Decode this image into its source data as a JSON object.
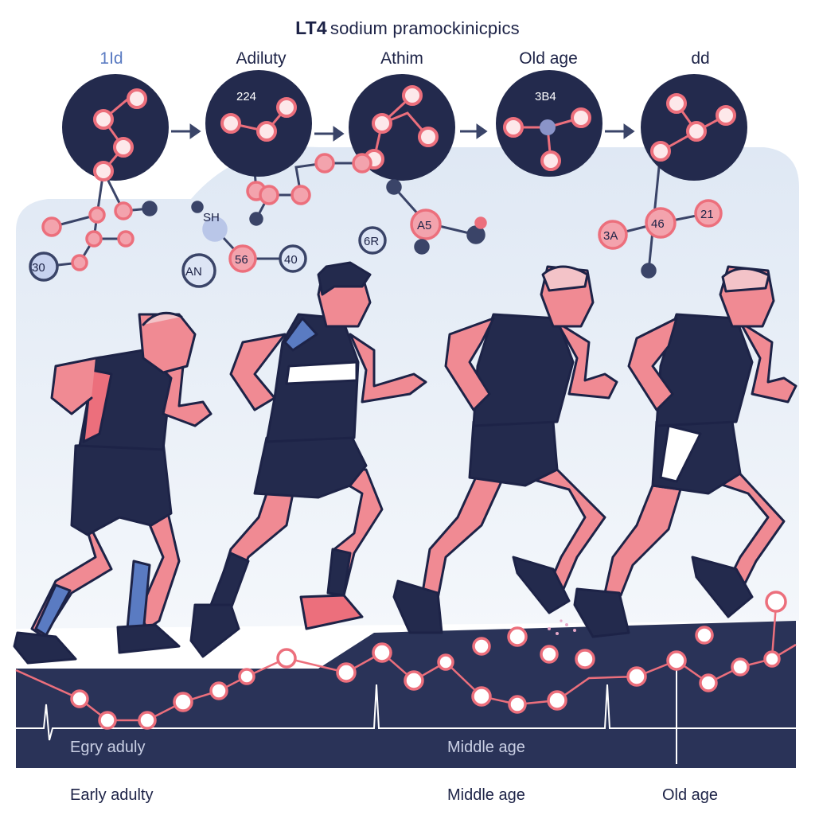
{
  "title_bold": "LT4",
  "title_rest": "sodium pramockinicpics",
  "stages": [
    "1Id",
    "Adiluty",
    "Athim",
    "Old age",
    "dd"
  ],
  "circle_numbers": [
    "224",
    "3B4"
  ],
  "node_labels": [
    "SH",
    "30",
    "AN",
    "56",
    "40",
    "6R",
    "A5",
    "3A",
    "46",
    "21"
  ],
  "track_labels": [
    "Egry aduly",
    "Middle age"
  ],
  "axis_labels": [
    "Early adulty",
    "Middle age",
    "Old age"
  ],
  "colors": {
    "navy": "#232a4d",
    "coral": "#ec6f7c",
    "node_fill": "#f3a3ad",
    "sky": "#e3ecf7",
    "skin": "#f08a93",
    "accent_blue": "#5a7bc2"
  }
}
